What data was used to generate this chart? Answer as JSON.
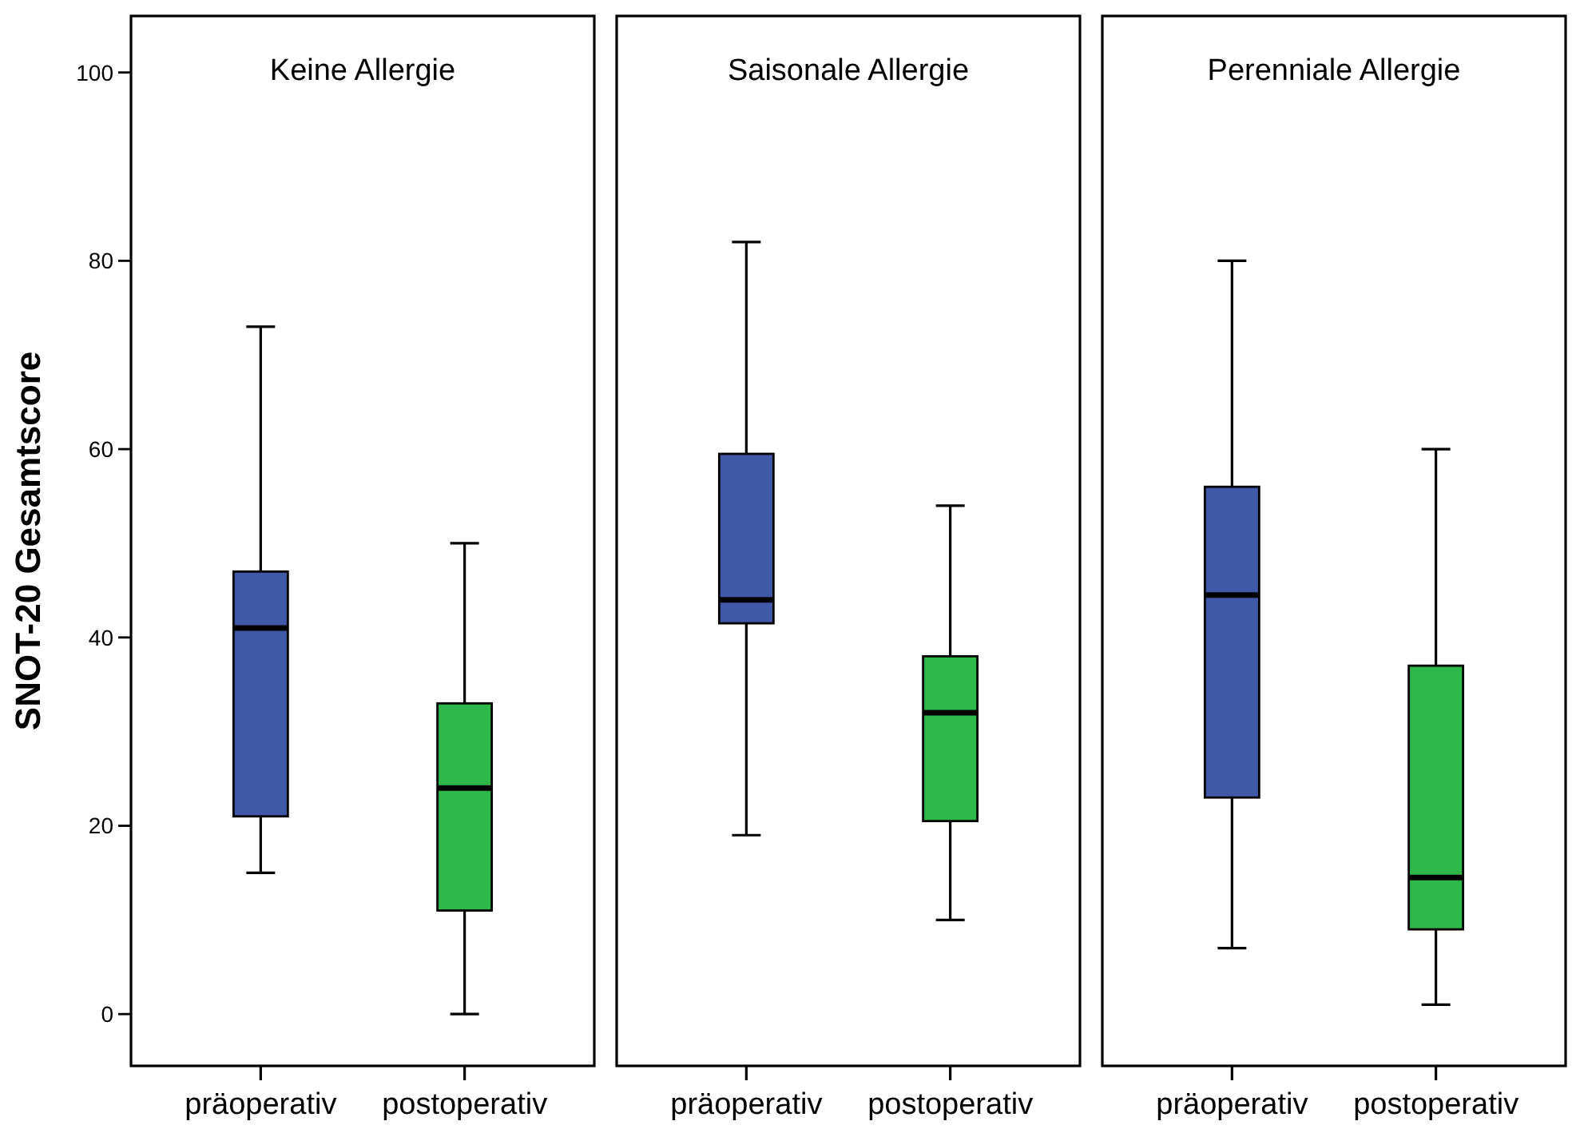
{
  "chart_data": [
    {
      "type": "box",
      "title": "Keine Allergie",
      "ylabel": "SNOT-20 Gesamtscore",
      "categories": [
        "präoperativ",
        "postoperativ"
      ],
      "colors": [
        "#3f58a8",
        "#2fb84a"
      ],
      "ylim": [
        -5.5,
        106
      ],
      "yticks": [
        0,
        20,
        40,
        60,
        80,
        100
      ],
      "boxes": [
        {
          "low": 15,
          "q1": 21,
          "median": 41,
          "q3": 47,
          "high": 73
        },
        {
          "low": 0,
          "q1": 11,
          "median": 24,
          "q3": 33,
          "high": 50
        }
      ]
    },
    {
      "type": "box",
      "title": "Saisonale Allergie",
      "categories": [
        "präoperativ",
        "postoperativ"
      ],
      "colors": [
        "#3f58a8",
        "#2fb84a"
      ],
      "ylim": [
        -5.5,
        106
      ],
      "tick_labels": "x",
      "boxes": [
        {
          "low": 19,
          "q1": 41.5,
          "median": 44,
          "q3": 59.5,
          "high": 82
        },
        {
          "low": 10,
          "q1": 20.5,
          "median": 32,
          "q3": 38,
          "high": 54
        }
      ]
    },
    {
      "type": "box",
      "title": "Perenniale Allergie",
      "categories": [
        "präoperativ",
        "postoperativ"
      ],
      "colors": [
        "#3f58a8",
        "#2fb84a"
      ],
      "ylim": [
        -5.5,
        106
      ],
      "tick_labels": "x",
      "boxes": [
        {
          "low": 7,
          "q1": 23,
          "median": 44.5,
          "q3": 56,
          "high": 80
        },
        {
          "low": 1,
          "q1": 9,
          "median": 14.5,
          "q3": 37,
          "high": 60
        }
      ]
    }
  ]
}
